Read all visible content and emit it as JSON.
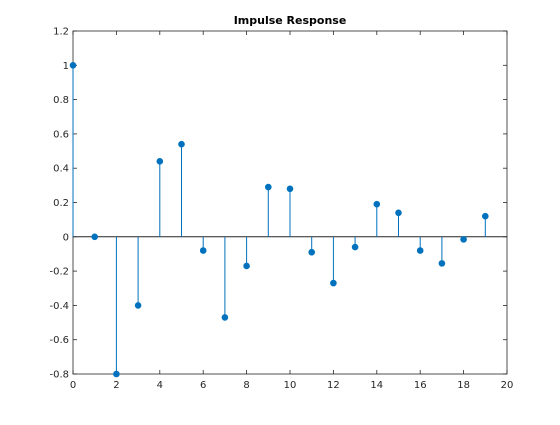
{
  "chart_data": {
    "type": "stem",
    "title": "Impulse Response",
    "xlabel": "",
    "ylabel": "",
    "xlim": [
      0,
      20
    ],
    "ylim": [
      -0.8,
      1.2
    ],
    "x_ticks": [
      "0",
      "2",
      "4",
      "6",
      "8",
      "10",
      "12",
      "14",
      "16",
      "18",
      "20"
    ],
    "y_ticks": [
      "-0.8",
      "-0.6",
      "-0.4",
      "-0.2",
      "0",
      "0.2",
      "0.4",
      "0.6",
      "0.8",
      "1",
      "1.2"
    ],
    "grid": false,
    "baseline": 0,
    "series": [
      {
        "x": [
          0,
          1,
          2,
          3,
          4,
          5,
          6,
          7,
          8,
          9,
          10,
          11,
          12,
          13,
          14,
          15,
          16,
          17,
          18,
          19
        ],
        "values": [
          1.0,
          0.0,
          -0.8,
          -0.4,
          0.44,
          0.54,
          -0.08,
          -0.47,
          -0.17,
          0.29,
          0.28,
          -0.09,
          -0.27,
          -0.06,
          0.19,
          0.14,
          -0.08,
          -0.155,
          -0.015,
          0.12
        ]
      }
    ],
    "colors": {
      "series": "#0072bd",
      "axes": "#262626",
      "background": "#ffffff"
    }
  }
}
